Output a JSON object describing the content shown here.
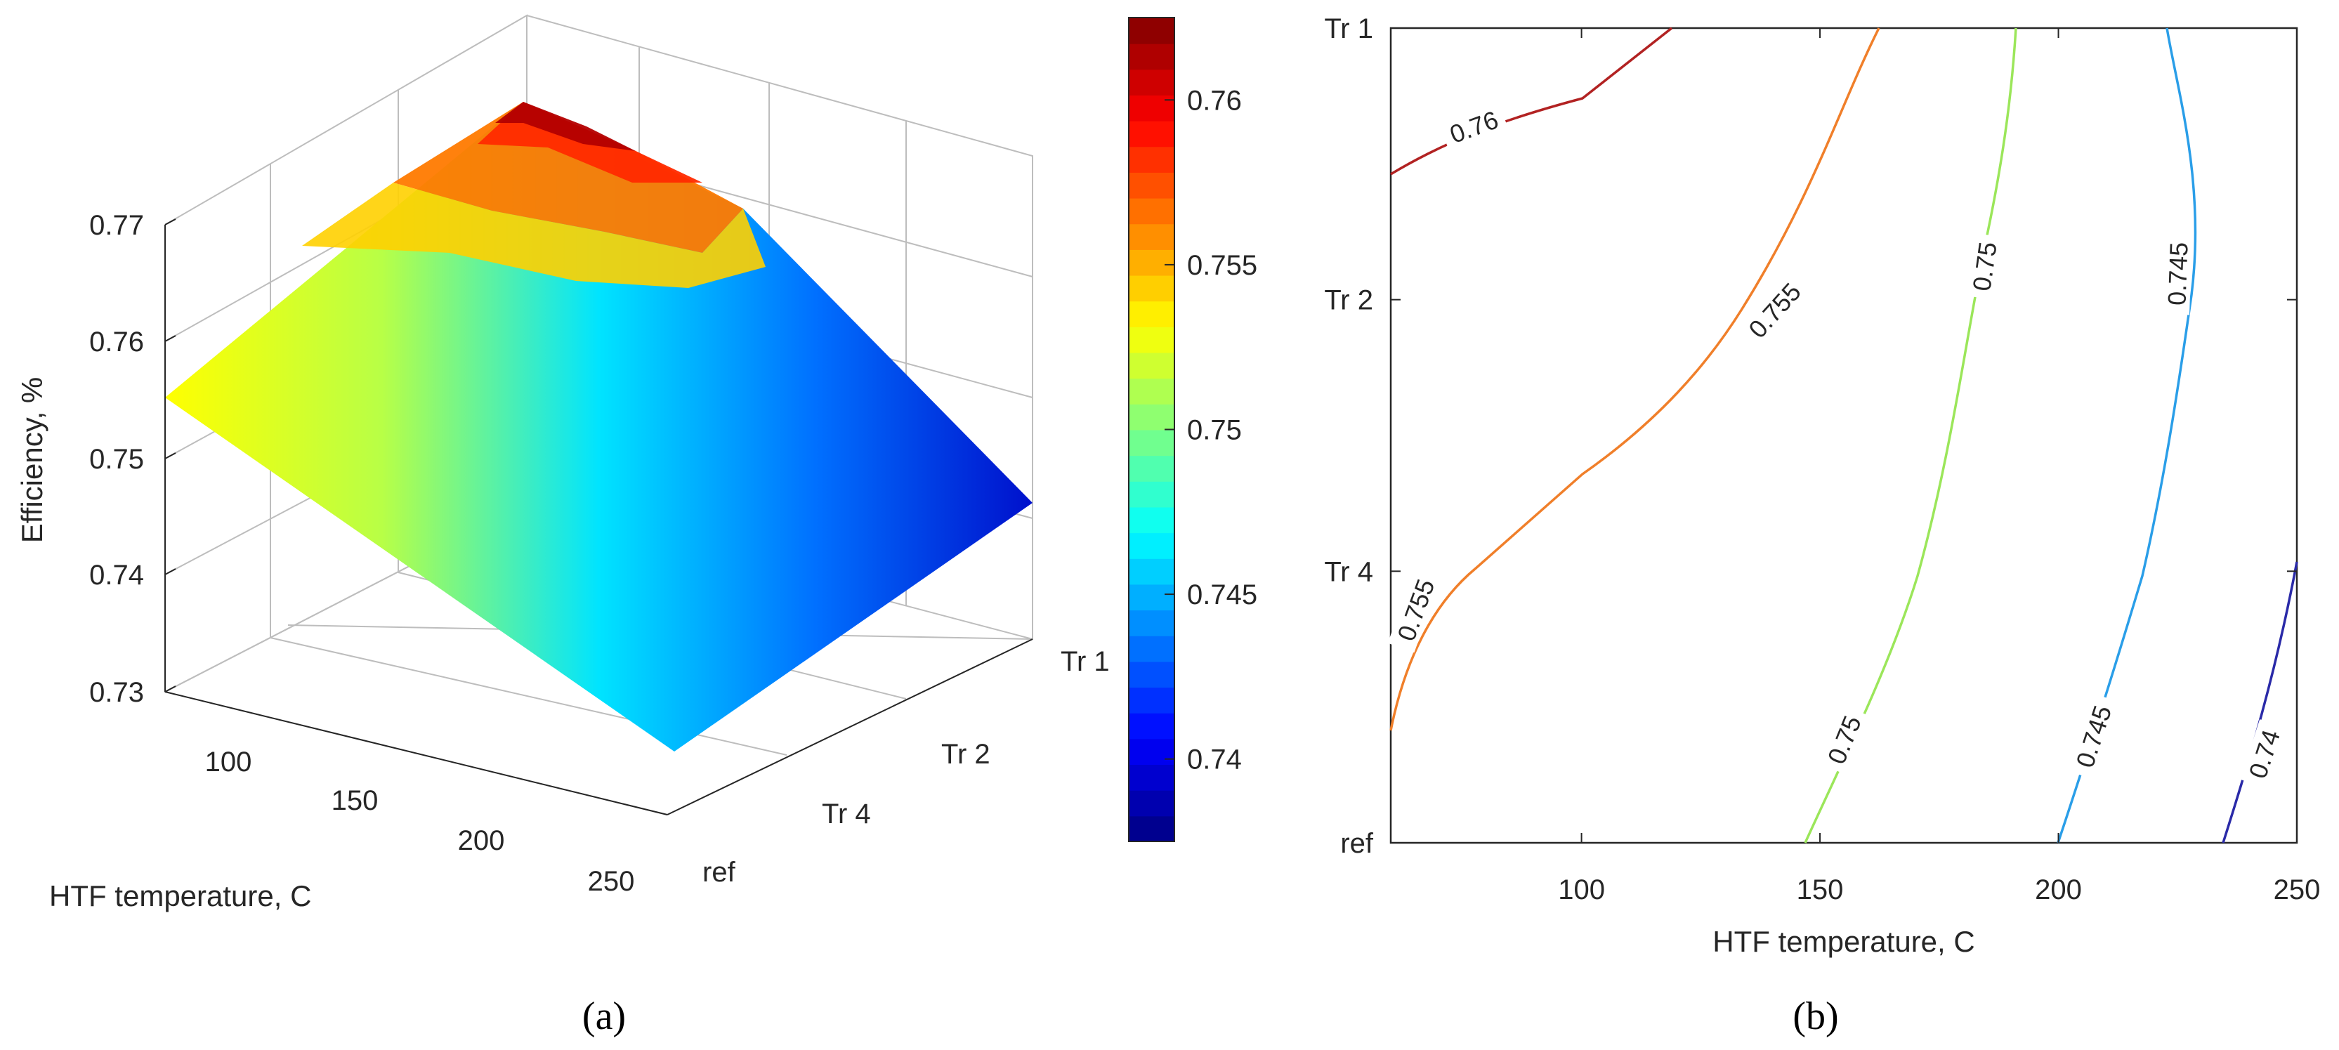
{
  "chart_data": [
    {
      "panel": "(a)",
      "type": "surface",
      "xlabel": "HTF temperature, C",
      "ylabel": "",
      "zlabel": "Efficiency, %",
      "x_ticks": [
        "100",
        "150",
        "200",
        "250"
      ],
      "y_ticks": [
        "ref",
        "Tr 4",
        "Tr 2",
        "Tr 1"
      ],
      "z_ticks": [
        "0.73",
        "0.74",
        "0.75",
        "0.76",
        "0.77"
      ],
      "xlim": [
        70,
        250
      ],
      "zlim": [
        0.73,
        0.77
      ],
      "colormap": "jet",
      "colorbar": {
        "range": [
          0.7375,
          0.7625
        ],
        "ticks": [
          "0.74",
          "0.745",
          "0.75",
          "0.755",
          "0.76"
        ]
      },
      "corner_values": [
        {
          "x": 70,
          "y": "Tr 1",
          "z": 0.7625
        },
        {
          "x": 250,
          "y": "Tr 1",
          "z": 0.7465
        },
        {
          "x": 70,
          "y": "ref",
          "z": 0.7545
        },
        {
          "x": 250,
          "y": "ref",
          "z": 0.7375
        }
      ]
    },
    {
      "panel": "(b)",
      "type": "contour",
      "xlabel": "HTF temperature, C",
      "ylabel": "",
      "x_ticks": [
        "100",
        "150",
        "200",
        "250"
      ],
      "y_ticks": [
        "ref",
        "Tr 4",
        "Tr 2",
        "Tr 1"
      ],
      "xlim": [
        60,
        250
      ],
      "ylim": [
        "ref",
        "Tr 1"
      ],
      "contour_levels": [
        {
          "level": 0.76,
          "label": "0.76",
          "color": "#b22222"
        },
        {
          "level": 0.755,
          "label": "0.755",
          "color": "#f07f2a"
        },
        {
          "level": 0.75,
          "label": "0.75",
          "color": "#9be65a"
        },
        {
          "level": 0.745,
          "label": "0.745",
          "color": "#2a9ee8"
        },
        {
          "level": 0.74,
          "label": "0.74",
          "color": "#2a2aa8"
        }
      ]
    }
  ],
  "panels": {
    "a": "(a)",
    "b": "(b)"
  }
}
